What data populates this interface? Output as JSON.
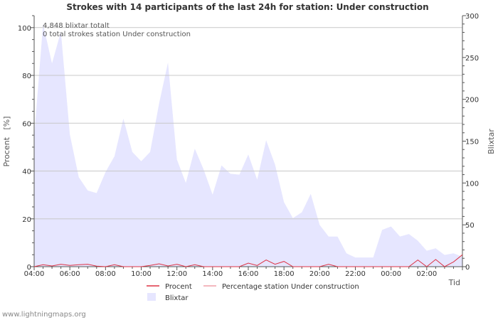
{
  "footer_text": "www.lightningmaps.org",
  "chart_data": {
    "type": "area",
    "title": "Strokes with 14 participants of the last 24h for station: Under construction",
    "ylabel_left": "Procent   [%]",
    "ylabel_right": "Blixtar",
    "xlabel": "Tid",
    "ylim_left": [
      0,
      105
    ],
    "ylim_right": [
      0,
      300
    ],
    "yticks_left": [
      0,
      20,
      40,
      60,
      80,
      100
    ],
    "yticks_right": [
      0,
      50,
      100,
      150,
      200,
      250,
      300
    ],
    "x_tick_labels": [
      "04:00",
      "06:00",
      "08:00",
      "10:00",
      "12:00",
      "14:00",
      "16:00",
      "18:00",
      "20:00",
      "22:00",
      "00:00",
      "02:00"
    ],
    "annotations": [
      "4,848 blixtar totalt",
      "0 total strokes station Under construction"
    ],
    "legend": [
      {
        "label": "Procent",
        "kind": "line",
        "color": "#dd3344"
      },
      {
        "label": "Percentage station Under construction",
        "kind": "line",
        "color": "#f0a0a8"
      },
      {
        "label": "Blixtar",
        "kind": "area",
        "color": "#e6e6ff"
      }
    ],
    "series": [
      {
        "name": "Blixtar",
        "axis": "right",
        "x_hours": [
          0,
          0.5,
          1,
          1.5,
          2,
          2.5,
          3,
          3.5,
          4,
          4.5,
          5,
          5.5,
          6,
          6.5,
          7,
          7.5,
          8,
          8.5,
          9,
          9.5,
          10,
          10.5,
          11,
          11.5,
          12,
          12.5,
          13,
          13.5,
          14,
          14.5,
          15,
          15.5,
          16,
          16.5,
          17,
          17.5,
          18,
          18.5,
          19,
          19.5,
          20,
          20.5,
          21,
          21.5,
          22,
          22.5,
          23,
          23.5,
          24
        ],
        "values": [
          155,
          290,
          243,
          281,
          158,
          107,
          91,
          88,
          113,
          132,
          177,
          137,
          126,
          137,
          195,
          244,
          128,
          100,
          141,
          116,
          86,
          121,
          111,
          110,
          134,
          104,
          151,
          122,
          77,
          58,
          65,
          87,
          50,
          36,
          36,
          16,
          11,
          11,
          11,
          44,
          48,
          36,
          39,
          31,
          19,
          22,
          14,
          16,
          12
        ]
      },
      {
        "name": "Procent",
        "axis": "left",
        "x_hours": [
          0,
          0.5,
          1,
          1.5,
          2,
          2.5,
          3,
          3.5,
          4,
          4.5,
          5,
          5.5,
          6,
          6.5,
          7,
          7.5,
          8,
          8.5,
          9,
          9.5,
          10,
          10.5,
          11,
          11.5,
          12,
          12.5,
          13,
          13.5,
          14,
          14.5,
          15,
          15.5,
          16,
          16.5,
          17,
          17.5,
          18,
          18.5,
          19,
          19.5,
          20,
          20.5,
          21,
          21.5,
          22,
          22.5,
          23,
          23.5,
          24
        ],
        "values": [
          0,
          0.8,
          0.3,
          1,
          0.5,
          0.8,
          1,
          0.2,
          0,
          0.8,
          0,
          0,
          0,
          0.5,
          1.2,
          0.3,
          1,
          0,
          0.8,
          0,
          0,
          0,
          0,
          0,
          1.5,
          0.5,
          2.8,
          1,
          2.2,
          0,
          0,
          0,
          0,
          1,
          0,
          0,
          0,
          0,
          0,
          0,
          0,
          0,
          0,
          2.8,
          0,
          3,
          0,
          2,
          5
        ]
      }
    ]
  }
}
